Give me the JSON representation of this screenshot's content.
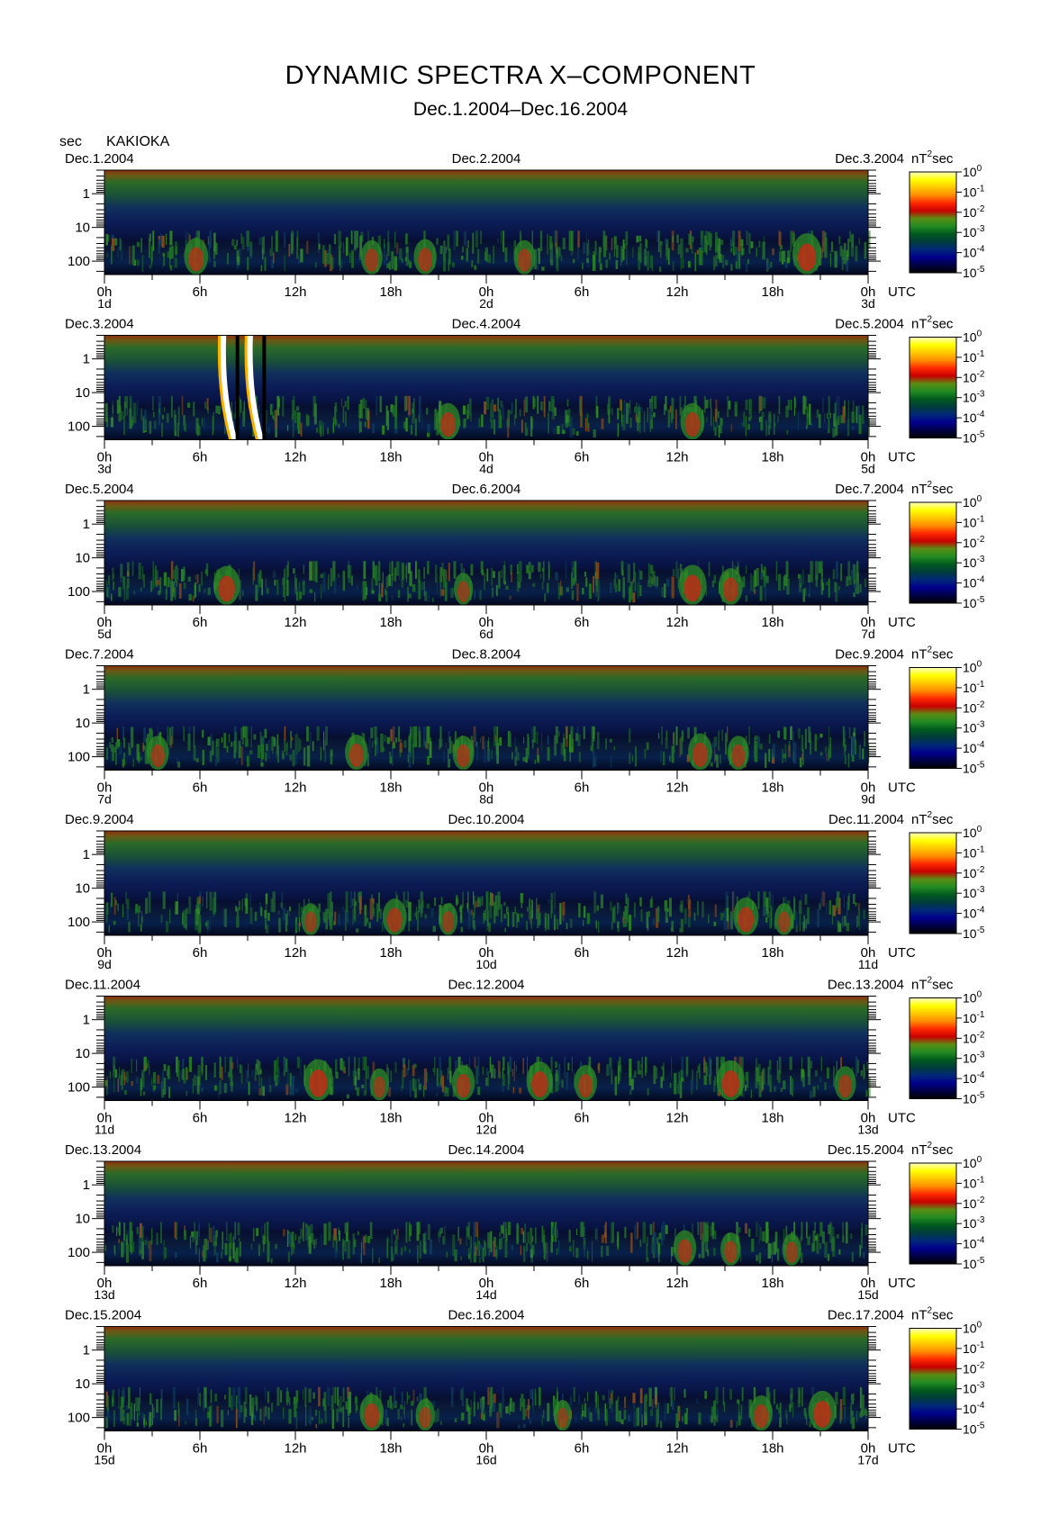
{
  "title": "DYNAMIC SPECTRA X–COMPONENT",
  "subtitle": "Dec.1.2004–Dec.16.2004",
  "y_unit_label": "sec",
  "station": "KAKIOKA",
  "colorbar_unit": "nT",
  "colorbar_unit_exp": "2",
  "colorbar_unit_suffix": "sec",
  "x_axis_unit": "UTC",
  "chart_data": {
    "type": "heatmap",
    "y_scale": "log",
    "y_ticks": [
      "1",
      "10",
      "100"
    ],
    "x_ticks": [
      "0h",
      "6h",
      "12h",
      "18h",
      "0h",
      "6h",
      "12h",
      "18h",
      "0h"
    ],
    "colorbar": {
      "ticks": [
        {
          "base": "10",
          "exp": "0"
        },
        {
          "base": "10",
          "exp": "-1"
        },
        {
          "base": "10",
          "exp": "-2"
        },
        {
          "base": "10",
          "exp": "-3"
        },
        {
          "base": "10",
          "exp": "-4"
        },
        {
          "base": "10",
          "exp": "-5"
        }
      ],
      "colors": [
        "#ffffc0",
        "#ffff00",
        "#ffc800",
        "#ff8c00",
        "#ff2800",
        "#c80000",
        "#5a8c14",
        "#228b22",
        "#005a1e",
        "#003c3c",
        "#002878",
        "#00008c",
        "#000046",
        "#000000"
      ]
    },
    "panels": [
      {
        "date_left": "Dec.1.2004",
        "date_mid": "Dec.2.2004",
        "date_right": "Dec.3.2004",
        "day_left": "1d",
        "day_mid": "2d",
        "day_right": "3d",
        "events": [
          {
            "t": 0.12,
            "strength": 0.6
          },
          {
            "t": 0.35,
            "strength": 0.5
          },
          {
            "t": 0.42,
            "strength": 0.55
          },
          {
            "t": 0.55,
            "strength": 0.5
          },
          {
            "t": 0.92,
            "strength": 0.8
          }
        ]
      },
      {
        "date_left": "Dec.3.2004",
        "date_mid": "Dec.4.2004",
        "date_right": "Dec.5.2004",
        "day_left": "3d",
        "day_mid": "4d",
        "day_right": "5d",
        "events": [
          {
            "t": 0.16,
            "strength": 1.0,
            "burst": true
          },
          {
            "t": 0.195,
            "strength": 1.0,
            "burst": true
          },
          {
            "t": 0.45,
            "strength": 0.6
          },
          {
            "t": 0.77,
            "strength": 0.6
          }
        ]
      },
      {
        "date_left": "Dec.5.2004",
        "date_mid": "Dec.6.2004",
        "date_right": "Dec.7.2004",
        "day_left": "5d",
        "day_mid": "6d",
        "day_right": "7d",
        "events": [
          {
            "t": 0.16,
            "strength": 0.7
          },
          {
            "t": 0.47,
            "strength": 0.4
          },
          {
            "t": 0.77,
            "strength": 0.75
          },
          {
            "t": 0.82,
            "strength": 0.6
          }
        ]
      },
      {
        "date_left": "Dec.7.2004",
        "date_mid": "Dec.8.2004",
        "date_right": "Dec.9.2004",
        "day_left": "7d",
        "day_mid": "8d",
        "day_right": "9d",
        "events": [
          {
            "t": 0.07,
            "strength": 0.5
          },
          {
            "t": 0.33,
            "strength": 0.55
          },
          {
            "t": 0.47,
            "strength": 0.5
          },
          {
            "t": 0.78,
            "strength": 0.6
          },
          {
            "t": 0.83,
            "strength": 0.5
          }
        ]
      },
      {
        "date_left": "Dec.9.2004",
        "date_mid": "Dec.10.2004",
        "date_right": "Dec.11.2004",
        "day_left": "9d",
        "day_mid": "10d",
        "day_right": "11d",
        "events": [
          {
            "t": 0.27,
            "strength": 0.4
          },
          {
            "t": 0.38,
            "strength": 0.6
          },
          {
            "t": 0.45,
            "strength": 0.4
          },
          {
            "t": 0.84,
            "strength": 0.65
          },
          {
            "t": 0.89,
            "strength": 0.4
          }
        ]
      },
      {
        "date_left": "Dec.11.2004",
        "date_mid": "Dec.12.2004",
        "date_right": "Dec.13.2004",
        "day_left": "11d",
        "day_mid": "12d",
        "day_right": "13d",
        "events": [
          {
            "t": 0.28,
            "strength": 0.8
          },
          {
            "t": 0.36,
            "strength": 0.4
          },
          {
            "t": 0.47,
            "strength": 0.55
          },
          {
            "t": 0.57,
            "strength": 0.7
          },
          {
            "t": 0.63,
            "strength": 0.55
          },
          {
            "t": 0.82,
            "strength": 0.75
          },
          {
            "t": 0.97,
            "strength": 0.5
          }
        ]
      },
      {
        "date_left": "Dec.13.2004",
        "date_mid": "Dec.14.2004",
        "date_right": "Dec.15.2004",
        "day_left": "13d",
        "day_mid": "14d",
        "day_right": "15d",
        "events": [
          {
            "t": 0.76,
            "strength": 0.55
          },
          {
            "t": 0.82,
            "strength": 0.45
          },
          {
            "t": 0.9,
            "strength": 0.4
          }
        ]
      },
      {
        "date_left": "Dec.15.2004",
        "date_mid": "Dec.16.2004",
        "date_right": "Dec.17.2004",
        "day_left": "15d",
        "day_mid": "16d",
        "day_right": "17d",
        "events": [
          {
            "t": 0.35,
            "strength": 0.6
          },
          {
            "t": 0.42,
            "strength": 0.4
          },
          {
            "t": 0.6,
            "strength": 0.35
          },
          {
            "t": 0.86,
            "strength": 0.55
          },
          {
            "t": 0.94,
            "strength": 0.75
          }
        ]
      }
    ]
  }
}
